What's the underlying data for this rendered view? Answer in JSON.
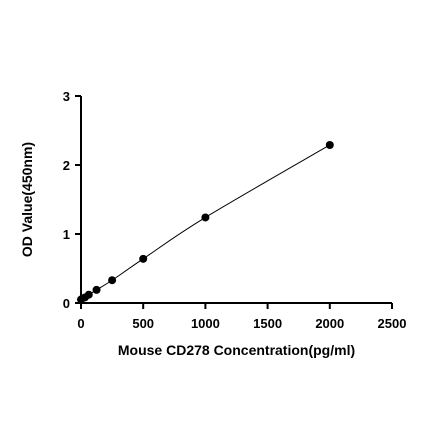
{
  "chart_data": {
    "type": "scatter",
    "title": "",
    "xlabel": "Mouse CD278 Concentration(pg/ml)",
    "ylabel": "OD Value(450nm)",
    "xlim": [
      0,
      2500
    ],
    "ylim": [
      0,
      3
    ],
    "xticks": [
      0,
      500,
      1000,
      1500,
      2000,
      2500
    ],
    "yticks": [
      0,
      1,
      2,
      3
    ],
    "grid": false,
    "legend": "none",
    "series": [
      {
        "points": [
          [
            0,
            0.05
          ],
          [
            31.25,
            0.08
          ],
          [
            62.5,
            0.12
          ],
          [
            125,
            0.19
          ],
          [
            250,
            0.33
          ],
          [
            500,
            0.64
          ],
          [
            1000,
            1.24
          ],
          [
            2000,
            2.29
          ]
        ],
        "fit_curve": true
      }
    ],
    "colors": {
      "marker": "#000000",
      "line": "#000000",
      "axis": "#000000"
    }
  }
}
